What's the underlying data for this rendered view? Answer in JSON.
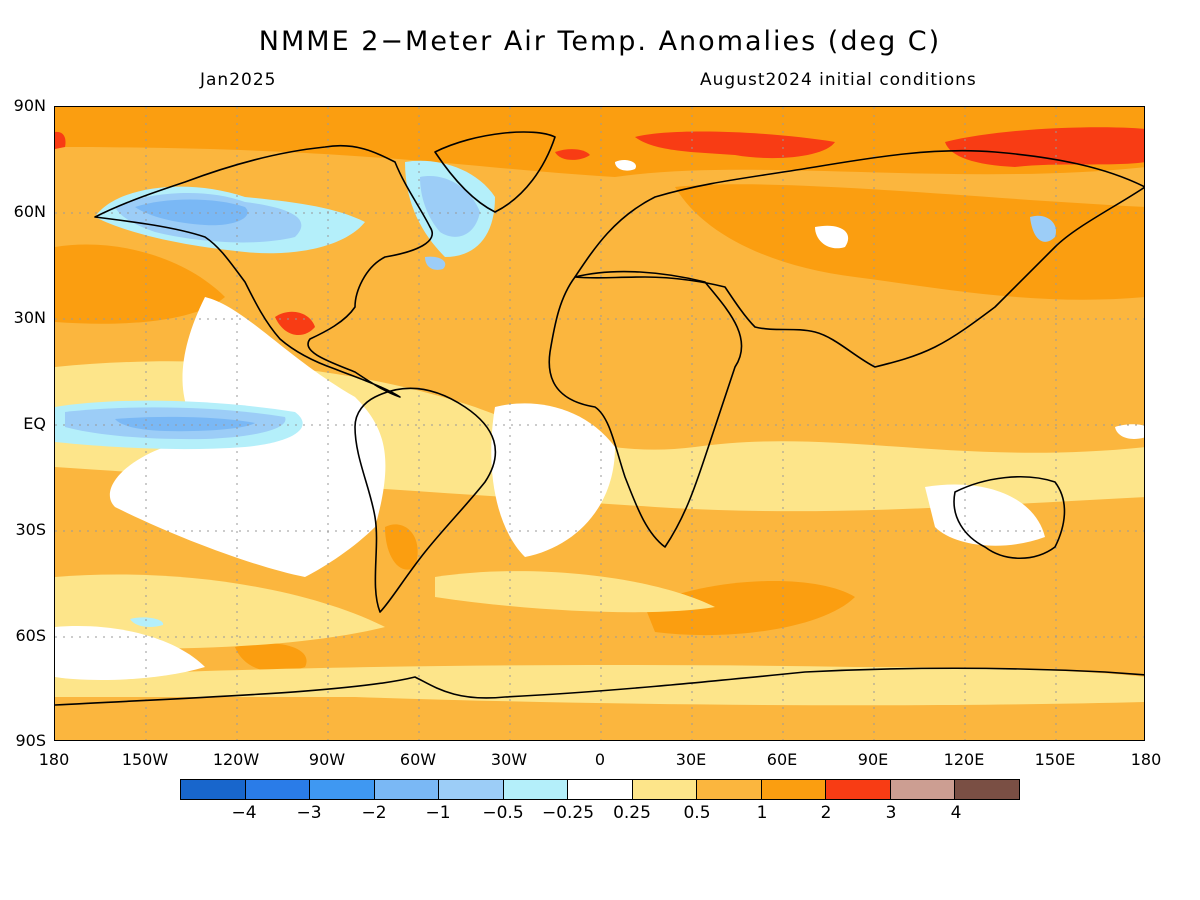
{
  "title": "NMME 2−Meter Air Temp. Anomalies (deg C)",
  "forecast_month": "Jan2025",
  "initial_conditions": "August2024 initial conditions",
  "lat_labels": [
    "90N",
    "60N",
    "30N",
    "EQ",
    "30S",
    "60S",
    "90S"
  ],
  "lon_labels": [
    "180",
    "150W",
    "120W",
    "90W",
    "60W",
    "30W",
    "0",
    "30E",
    "60E",
    "90E",
    "120E",
    "150E",
    "180"
  ],
  "colorbar": {
    "colors": [
      "#1866cc",
      "#2a7ce8",
      "#3f98f2",
      "#7ab8f5",
      "#9ccdf7",
      "#b4effa",
      "#ffffff",
      "#fde58a",
      "#fbb63e",
      "#fb9e10",
      "#f83c14",
      "#cc9e92",
      "#7a4f44"
    ],
    "labels": [
      "−4",
      "−3",
      "−2",
      "−1",
      "−0.5",
      "−0.25",
      "0.25",
      "0.5",
      "1",
      "2",
      "3",
      "4"
    ]
  },
  "legend_colors": {
    "white": "#ffffff",
    "pale_yellow": "#fde58a",
    "light_orange": "#fbb63e",
    "orange": "#fb9e10",
    "red": "#f83c14",
    "light_blue": "#b4effa",
    "blue": "#9ccdf7",
    "mid_blue": "#7ab8f5"
  }
}
